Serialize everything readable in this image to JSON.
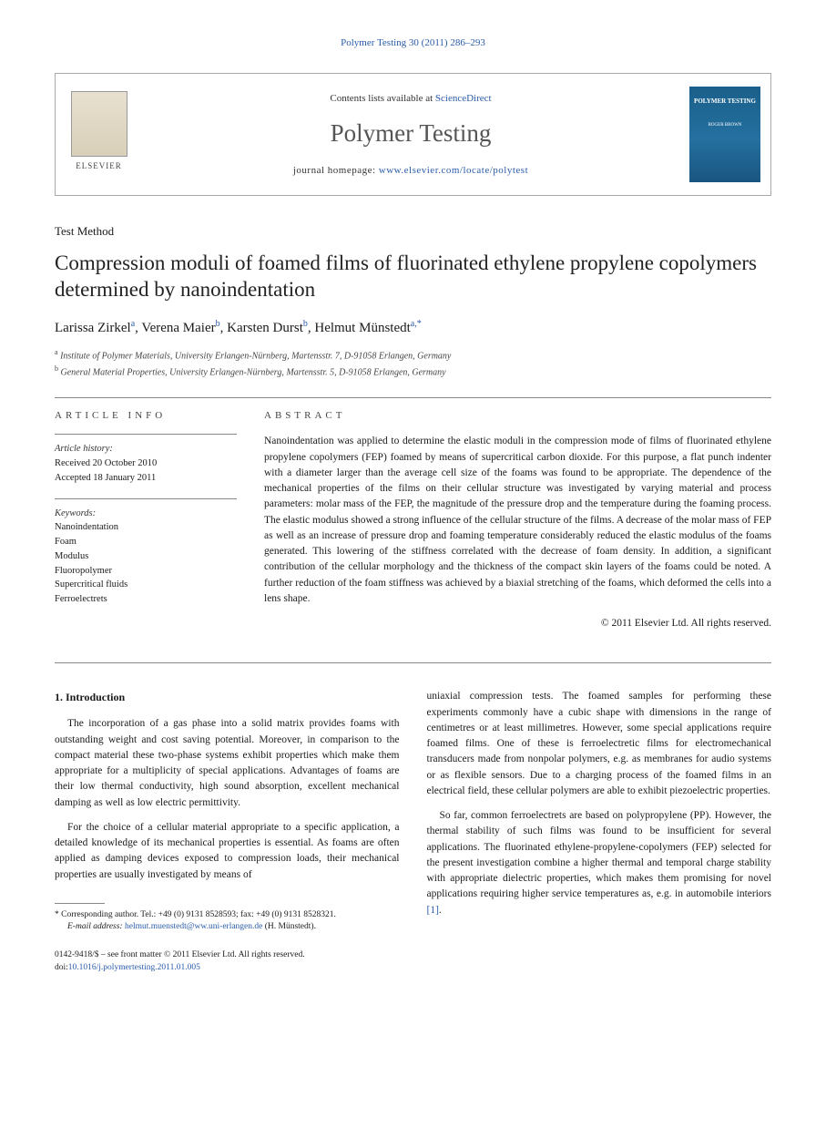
{
  "citation": "Polymer Testing 30 (2011) 286–293",
  "header": {
    "contents_prefix": "Contents lists available at ",
    "contents_link": "ScienceDirect",
    "journal_name": "Polymer Testing",
    "homepage_prefix": "journal homepage: ",
    "homepage_url": "www.elsevier.com/locate/polytest",
    "publisher_logo_text": "ELSEVIER",
    "cover_title": "POLYMER TESTING",
    "cover_editor": "ROGER BROWN"
  },
  "article_type": "Test Method",
  "title": "Compression moduli of foamed films of fluorinated ethylene propylene copolymers determined by nanoindentation",
  "authors": [
    {
      "name": "Larissa Zirkel",
      "aff": "a"
    },
    {
      "name": "Verena Maier",
      "aff": "b"
    },
    {
      "name": "Karsten Durst",
      "aff": "b"
    },
    {
      "name": "Helmut Münstedt",
      "aff": "a,*"
    }
  ],
  "affiliations": {
    "a": "Institute of Polymer Materials, University Erlangen-Nürnberg, Martensstr. 7, D-91058 Erlangen, Germany",
    "b": "General Material Properties, University Erlangen-Nürnberg, Martensstr. 5, D-91058 Erlangen, Germany"
  },
  "article_info": {
    "heading": "ARTICLE INFO",
    "history_label": "Article history:",
    "received": "Received 20 October 2010",
    "accepted": "Accepted 18 January 2011",
    "keywords_label": "Keywords:",
    "keywords": [
      "Nanoindentation",
      "Foam",
      "Modulus",
      "Fluoropolymer",
      "Supercritical fluids",
      "Ferroelectrets"
    ]
  },
  "abstract": {
    "heading": "ABSTRACT",
    "text": "Nanoindentation was applied to determine the elastic moduli in the compression mode of films of fluorinated ethylene propylene copolymers (FEP) foamed by means of supercritical carbon dioxide. For this purpose, a flat punch indenter with a diameter larger than the average cell size of the foams was found to be appropriate. The dependence of the mechanical properties of the films on their cellular structure was investigated by varying material and process parameters: molar mass of the FEP, the magnitude of the pressure drop and the temperature during the foaming process. The elastic modulus showed a strong influence of the cellular structure of the films. A decrease of the molar mass of FEP as well as an increase of pressure drop and foaming temperature considerably reduced the elastic modulus of the foams generated. This lowering of the stiffness correlated with the decrease of foam density. In addition, a significant contribution of the cellular morphology and the thickness of the compact skin layers of the foams could be noted. A further reduction of the foam stiffness was achieved by a biaxial stretching of the foams, which deformed the cells into a lens shape.",
    "copyright": "© 2011 Elsevier Ltd. All rights reserved."
  },
  "body": {
    "section1_heading": "1. Introduction",
    "col1_p1": "The incorporation of a gas phase into a solid matrix provides foams with outstanding weight and cost saving potential. Moreover, in comparison to the compact material these two-phase systems exhibit properties which make them appropriate for a multiplicity of special applications. Advantages of foams are their low thermal conductivity, high sound absorption, excellent mechanical damping as well as low electric permittivity.",
    "col1_p2": "For the choice of a cellular material appropriate to a specific application, a detailed knowledge of its mechanical properties is essential. As foams are often applied as damping devices exposed to compression loads, their mechanical properties are usually investigated by means of",
    "col2_p1": "uniaxial compression tests. The foamed samples for performing these experiments commonly have a cubic shape with dimensions in the range of centimetres or at least millimetres. However, some special applications require foamed films. One of these is ferroelectretic films for electromechanical transducers made from nonpolar polymers, e.g. as membranes for audio systems or as flexible sensors. Due to a charging process of the foamed films in an electrical field, these cellular polymers are able to exhibit piezoelectric properties.",
    "col2_p2_a": "So far, common ferroelectrets are based on polypropylene (PP). However, the thermal stability of such films was found to be insufficient for several applications. The fluorinated ethylene-propylene-copolymers (FEP) selected for the present investigation combine a higher thermal and temporal charge stability with appropriate dielectric properties, which makes them promising for novel applications requiring higher service temperatures as, e.g. in automobile interiors ",
    "col2_p2_ref": "[1]",
    "col2_p2_b": "."
  },
  "footnotes": {
    "corr_label": "* Corresponding author. Tel.: +49 (0) 9131 8528593; fax: +49 (0) 9131 8528321.",
    "email_label": "E-mail address:",
    "email": "helmut.muenstedt@ww.uni-erlangen.de",
    "email_suffix": "(H. Münstedt)."
  },
  "footer": {
    "line1": "0142-9418/$ – see front matter © 2011 Elsevier Ltd. All rights reserved.",
    "doi_prefix": "doi:",
    "doi": "10.1016/j.polymertesting.2011.01.005"
  }
}
